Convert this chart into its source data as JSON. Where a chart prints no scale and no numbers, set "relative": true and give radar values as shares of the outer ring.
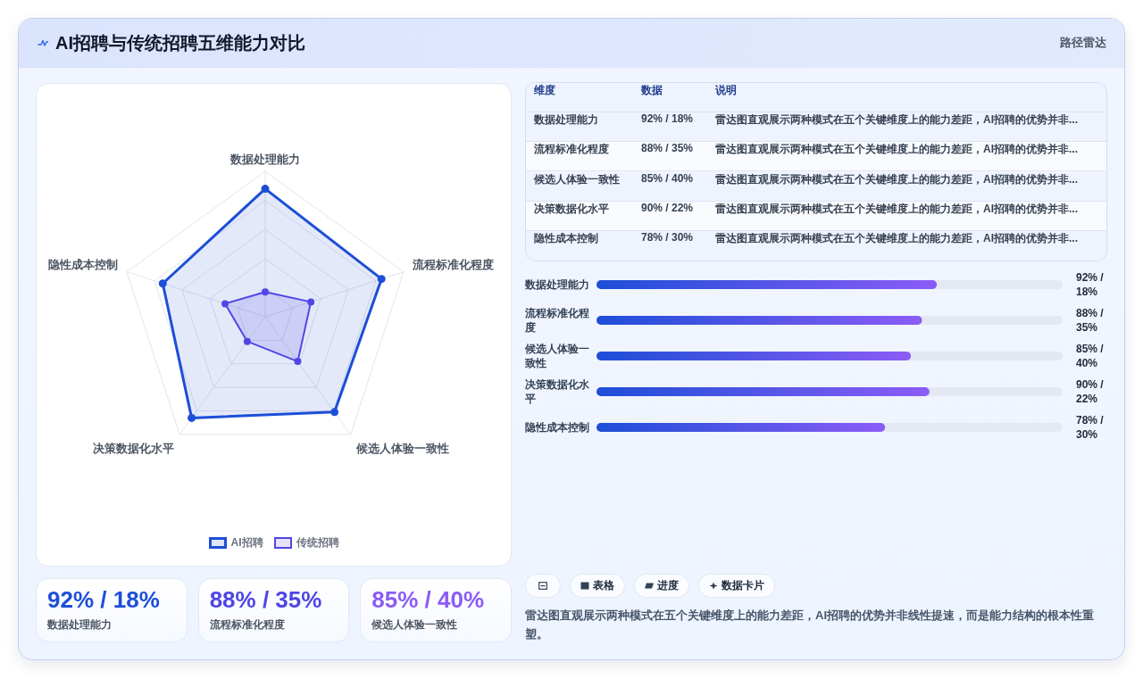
{
  "chart_data": [
    {
      "type": "other",
      "title": "AI招聘与传统招聘五维能力对比",
      "subtitle": "路径雷达"
    },
    {
      "type": "radar",
      "relative": true,
      "categories": [
        "数据处理能力",
        "流程标准化程度",
        "候选人体验一致性",
        "决策数据化水平",
        "隐性成本控制"
      ],
      "series": [
        {
          "name": "AI招聘",
          "color": "#1d4ed8",
          "values": [
            0.88,
            0.84,
            0.81,
            0.86,
            0.74
          ]
        },
        {
          "name": "传统招聘",
          "color": "#4f46e5",
          "values": [
            0.17,
            0.33,
            0.38,
            0.21,
            0.29
          ]
        }
      ],
      "grid": true,
      "marker": "circle",
      "legend": "bottom"
    },
    {
      "type": "other",
      "annotations": [
        "维度",
        "数据",
        "说明",
        "数据处理能力",
        "92% / 18%",
        "雷达图直观展示两种模式在五个关键维度上的能力差距，AI招聘的优势并非...",
        "流程标准化程度",
        "88% / 35%",
        "雷达图直观展示两种模式在五个关键维度上的能力差距，AI招聘的优势并非...",
        "候选人体验一致性",
        "85% / 40%",
        "雷达图直观展示两种模式在五个关键维度上的能力差距，AI招聘的优势并非...",
        "决策数据化水平",
        "90% / 22%",
        "雷达图直观展示两种模式在五个关键维度上的能力差距，AI招聘的优势并非...",
        "隐性成本控制",
        "78% / 30%",
        "雷达图直观展示两种模式在五个关键维度上的能力差距，AI招聘的优势并非..."
      ]
    },
    {
      "type": "bar",
      "orientation": "horizontal",
      "categories": [
        "数据处理能力",
        "流程标准化程度",
        "候选人体验一致性",
        "决策数据化水平",
        "隐性成本控制"
      ],
      "values": [
        92,
        88,
        85,
        90,
        78
      ],
      "color": "#1d4ed8",
      "xlim": [
        0,
        126
      ],
      "value_labels": [
        "92% / 18%",
        "88% / 35%",
        "85% / 40%",
        "90% / 22%",
        "78% / 30%"
      ]
    },
    {
      "type": "other",
      "annotations": [
        "92% / 18%",
        "数据处理能力",
        "88% / 35%",
        "流程标准化程度",
        "85% / 40%",
        "候选人体验一致性"
      ]
    },
    {
      "type": "other",
      "annotations": [
        "表格",
        "进度",
        "数据卡片",
        "雷达图直观展示两种模式在五个关键维度上的能力差距，AI招聘的优势并非线性提速，而是能力结构的根本性重塑。"
      ]
    }
  ]
}
